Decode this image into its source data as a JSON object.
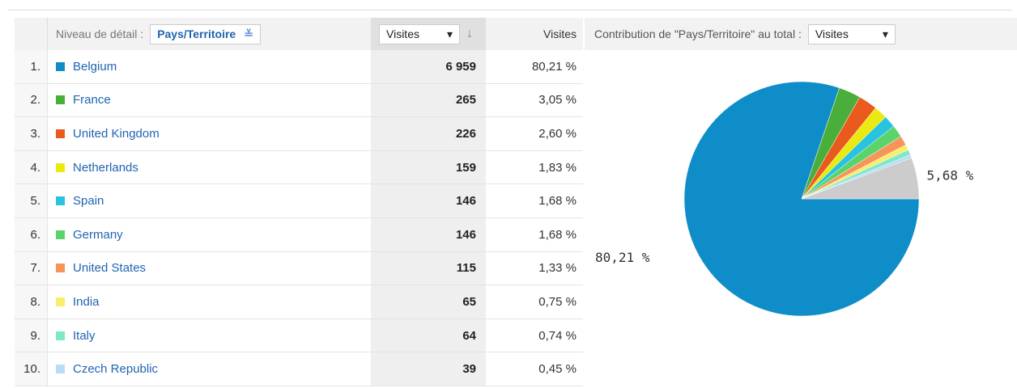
{
  "header": {
    "detail_label": "Niveau de détail :",
    "dimension": "Pays/Territoire",
    "metric_select": "Visites",
    "metric_column": "Visites",
    "contribution_label": "Contribution de \"Pays/Territoire\" au total :",
    "contribution_select": "Visites"
  },
  "table": {
    "rows": [
      [
        "1.",
        "Belgium",
        "6 959",
        "80,21 %"
      ],
      [
        "2.",
        "France",
        "265",
        "3,05 %"
      ],
      [
        "3.",
        "United Kingdom",
        "226",
        "2,60 %"
      ],
      [
        "4.",
        "Netherlands",
        "159",
        "1,83 %"
      ],
      [
        "5.",
        "Spain",
        "146",
        "1,68 %"
      ],
      [
        "6.",
        "Germany",
        "146",
        "1,68 %"
      ],
      [
        "7.",
        "United States",
        "115",
        "1,33 %"
      ],
      [
        "8.",
        "India",
        "65",
        "0,75 %"
      ],
      [
        "9.",
        "Italy",
        "64",
        "0,74 %"
      ],
      [
        "10.",
        "Czech Republic",
        "39",
        "0,45 %"
      ]
    ]
  },
  "chart_data": {
    "type": "pie",
    "values": [
      80.21,
      3.05,
      2.6,
      1.83,
      1.68,
      1.68,
      1.33,
      0.75,
      0.74,
      0.45,
      5.68
    ],
    "value_labels": [
      "80,21 %",
      null,
      null,
      null,
      null,
      null,
      null,
      null,
      null,
      null,
      "5,68 %"
    ],
    "colors": [
      "#0f8dc8",
      "#4aae3a",
      "#ea5a1d",
      "#eaea10",
      "#29c3e0",
      "#5ad46a",
      "#f7945a",
      "#f7ee6a",
      "#7fe8c8",
      "#b8dcf6",
      "#cccccc"
    ]
  }
}
